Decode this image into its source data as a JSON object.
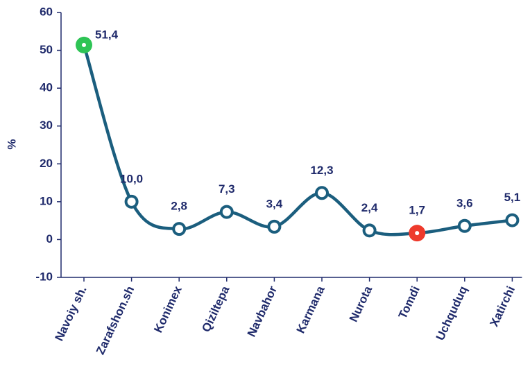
{
  "chart_data": {
    "type": "line",
    "y_label": "%",
    "categories": [
      "Navoiy sh.",
      "Zarafshon.sh",
      "Konimex",
      "Qiziltepa",
      "Navbahor",
      "Karmana",
      "Nurota",
      "Tomdi",
      "Uchquduq",
      "Xatirchi"
    ],
    "values": [
      51.4,
      10.0,
      2.8,
      7.3,
      3.4,
      12.3,
      2.4,
      1.7,
      3.6,
      5.1
    ],
    "value_labels": [
      "51,4",
      "10,0",
      "2,8",
      "7,3",
      "3,4",
      "12,3",
      "2,4",
      "1,7",
      "3,6",
      "5,1"
    ],
    "color": "#1b5e7e",
    "marker_colors": [
      "#2ec455",
      "#ffffff",
      "#ffffff",
      "#ffffff",
      "#ffffff",
      "#ffffff",
      "#ffffff",
      "#ee3a2c",
      "#ffffff",
      "#ffffff"
    ],
    "ylim": [
      -10,
      60
    ],
    "yticks": [
      -10,
      0,
      10,
      20,
      30,
      40,
      50,
      60
    ]
  }
}
